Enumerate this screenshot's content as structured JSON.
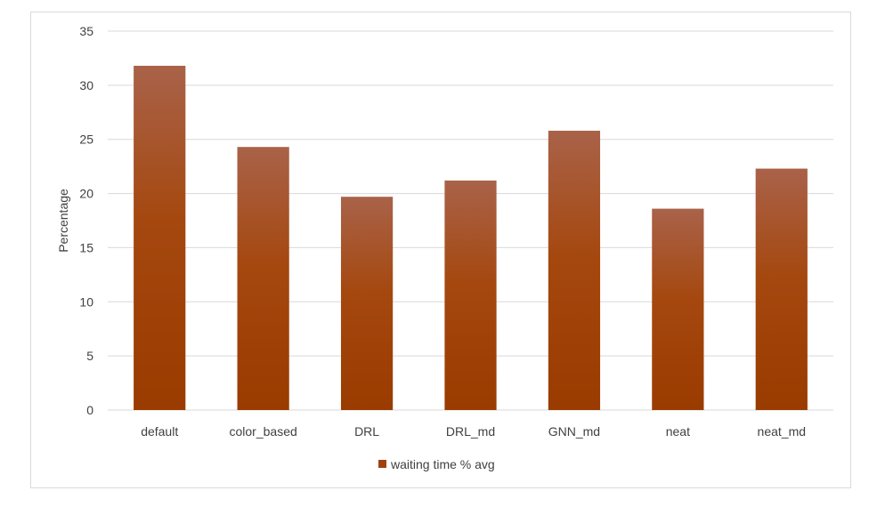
{
  "chart_data": {
    "type": "bar",
    "title": "",
    "xlabel": "",
    "ylabel": "Percentage",
    "ylim": [
      0,
      35
    ],
    "yticks": [
      0,
      5,
      10,
      15,
      20,
      25,
      30,
      35
    ],
    "grid": true,
    "legend_position": "bottom",
    "categories": [
      "default",
      "color_based",
      "DRL",
      "DRL_md",
      "GNN_md",
      "neat",
      "neat_md"
    ],
    "series": [
      {
        "name": "waiting time % avg",
        "color": "#A0420F",
        "values": [
          31.8,
          24.3,
          19.7,
          21.2,
          25.8,
          18.6,
          22.3
        ]
      }
    ]
  }
}
